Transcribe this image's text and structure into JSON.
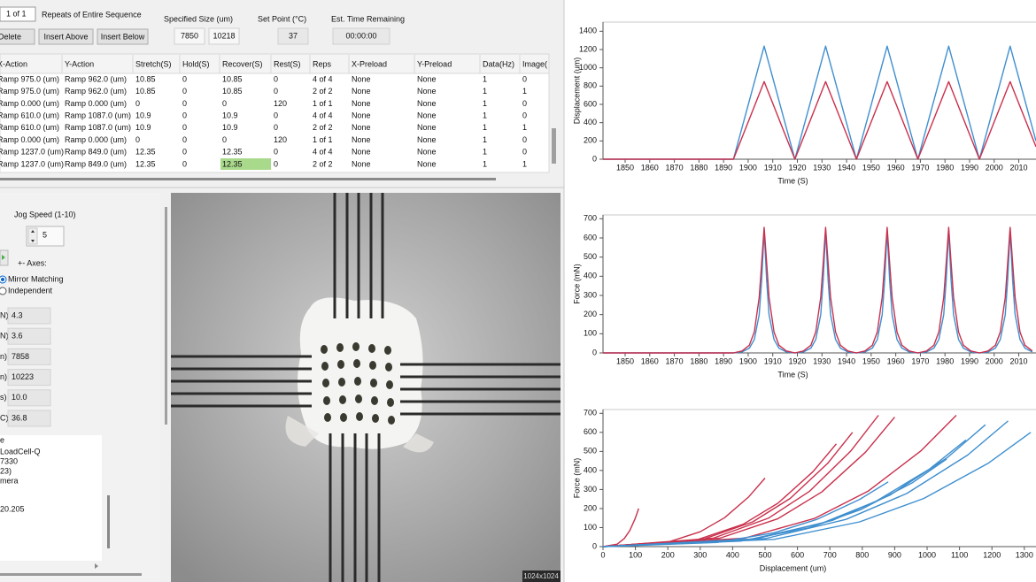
{
  "toolbar": {
    "page": "1 of 1",
    "repeats_label": "Repeats of Entire Sequence",
    "buttons": [
      "Delete",
      "Insert Above",
      "Insert Below"
    ],
    "specified_size_label": "Specified Size (um)",
    "size_x": "7850",
    "size_y": "10218",
    "set_point_label": "Set Point (°C)",
    "set_point": "37",
    "time_label": "Est. Time Remaining",
    "time": "00:00:00"
  },
  "table": {
    "headers": [
      "X-Action",
      "Y-Action",
      "Stretch(S)",
      "Hold(S)",
      "Recover(S)",
      "Rest(S)",
      "Reps",
      "X-Preload",
      "Y-Preload",
      "Data(Hz)",
      "Image("
    ],
    "rows": [
      [
        "Ramp 975.0 (um)",
        "Ramp 962.0 (um)",
        "10.85",
        "0",
        "10.85",
        "0",
        "4 of 4",
        "None",
        "None",
        "1",
        "0"
      ],
      [
        "Ramp 975.0 (um)",
        "Ramp 962.0 (um)",
        "10.85",
        "0",
        "10.85",
        "0",
        "2 of 2",
        "None",
        "None",
        "1",
        "1"
      ],
      [
        "Ramp 0.000 (um)",
        "Ramp 0.000 (um)",
        "0",
        "0",
        "0",
        "120",
        "1 of 1",
        "None",
        "None",
        "1",
        "0"
      ],
      [
        "Ramp 610.0 (um)",
        "Ramp 1087.0 (um)",
        "10.9",
        "0",
        "10.9",
        "0",
        "4 of 4",
        "None",
        "None",
        "1",
        "0"
      ],
      [
        "Ramp 610.0 (um)",
        "Ramp 1087.0 (um)",
        "10.9",
        "0",
        "10.9",
        "0",
        "2 of 2",
        "None",
        "None",
        "1",
        "1"
      ],
      [
        "Ramp 0.000 (um)",
        "Ramp 0.000 (um)",
        "0",
        "0",
        "0",
        "120",
        "1 of 1",
        "None",
        "None",
        "1",
        "0"
      ],
      [
        "Ramp 1237.0 (um)",
        "Ramp 849.0 (um)",
        "12.35",
        "0",
        "12.35",
        "0",
        "4 of 4",
        "None",
        "None",
        "1",
        "0"
      ],
      [
        "Ramp 1237.0 (um)",
        "Ramp 849.0 (um)",
        "12.35",
        "0",
        "12.35",
        "0",
        "2 of 2",
        "None",
        "None",
        "1",
        "1"
      ]
    ]
  },
  "controls": {
    "jog_label": "Jog Speed (1-10)",
    "jog": "5",
    "axes_label": "+- Axes:",
    "radios": [
      "Mirror Matching",
      "Independent"
    ],
    "readouts": [
      {
        "label": "N)",
        "value": "4.3"
      },
      {
        "label": "N)",
        "value": "3.6"
      },
      {
        "label": "n)",
        "value": "7858"
      },
      {
        "label": "n)",
        "value": "10223"
      },
      {
        "label": "s)",
        "value": "10.0"
      },
      {
        "label": "C)",
        "value": "36.8"
      }
    ],
    "info_lines": [
      "e",
      "LoadCell-Q",
      "7330",
      "23)",
      "mera",
      "20.205"
    ]
  },
  "image_label": "1024x1024",
  "chart_data": [
    {
      "type": "line",
      "xlabel": "Time (S)",
      "ylabel": "Displacement (um)",
      "xlim": [
        1841,
        2017
      ],
      "ylim": [
        0,
        1500
      ],
      "xticks": [
        1850,
        1860,
        1870,
        1880,
        1890,
        1900,
        1910,
        1920,
        1930,
        1940,
        1950,
        1960,
        1970,
        1980,
        1990,
        2000,
        2010
      ],
      "yticks": [
        0,
        200,
        400,
        600,
        800,
        1000,
        1200,
        1400
      ],
      "x": [
        1841,
        1894,
        1906.5,
        1919,
        1931.5,
        1944,
        1956.5,
        1969,
        1981.5,
        1994,
        2006.5,
        2017
      ],
      "series": [
        {
          "color": "#3f8fcf",
          "values": [
            0,
            0,
            1237,
            0,
            1237,
            0,
            1237,
            0,
            1237,
            0,
            1237,
            198
          ]
        },
        {
          "color": "#c9304c",
          "values": [
            0,
            0,
            849,
            0,
            849,
            0,
            849,
            0,
            849,
            0,
            849,
            136
          ]
        }
      ]
    },
    {
      "type": "line",
      "xlabel": "Time (S)",
      "ylabel": "Force (mN)",
      "xlim": [
        1841,
        2017
      ],
      "ylim": [
        0,
        720
      ],
      "xticks": [
        1850,
        1860,
        1870,
        1880,
        1890,
        1900,
        1910,
        1920,
        1930,
        1940,
        1950,
        1960,
        1970,
        1980,
        1990,
        2000,
        2010
      ],
      "yticks": [
        0,
        100,
        200,
        300,
        400,
        500,
        600,
        700
      ],
      "x": [
        1841,
        1894,
        1897.5,
        1900.5,
        1902.5,
        1904.5,
        1905.5,
        1906.5,
        1907.5,
        1908.5,
        1910.5,
        1912.5,
        1915.5,
        1919,
        1922.5,
        1925.5,
        1927.5,
        1929.5,
        1930.5,
        1931.5,
        1932.5,
        1933.5,
        1935.5,
        1937.5,
        1940.5,
        1944,
        1947.5,
        1950.5,
        1952.5,
        1954.5,
        1955.5,
        1956.5,
        1957.5,
        1958.5,
        1960.5,
        1962.5,
        1965.5,
        1969,
        1972.5,
        1975.5,
        1977.5,
        1979.5,
        1980.5,
        1981.5,
        1982.5,
        1983.5,
        1985.5,
        1987.5,
        1990.5,
        1994,
        1997.5,
        2000.5,
        2002.5,
        2004.5,
        2005.5,
        2006.5,
        2007.5,
        2008.5,
        2010.5,
        2012.5,
        2015.5
      ],
      "series": [
        {
          "color": "#3f8fcf",
          "values": [
            0,
            0,
            5,
            25,
            70,
            200,
            380,
            640,
            380,
            200,
            70,
            25,
            5,
            0,
            5,
            25,
            70,
            200,
            380,
            640,
            380,
            200,
            70,
            25,
            5,
            0,
            5,
            25,
            70,
            200,
            380,
            640,
            380,
            200,
            70,
            25,
            5,
            0,
            5,
            25,
            70,
            200,
            380,
            640,
            380,
            200,
            70,
            25,
            5,
            0,
            5,
            25,
            70,
            200,
            380,
            640,
            380,
            200,
            70,
            25,
            5
          ]
        },
        {
          "color": "#c9304c",
          "values": [
            0,
            0,
            10,
            40,
            110,
            290,
            470,
            655,
            470,
            290,
            110,
            40,
            10,
            0,
            10,
            40,
            110,
            290,
            470,
            655,
            470,
            290,
            110,
            40,
            10,
            0,
            10,
            40,
            110,
            290,
            470,
            655,
            470,
            290,
            110,
            40,
            10,
            0,
            10,
            40,
            110,
            290,
            470,
            655,
            470,
            290,
            110,
            40,
            10,
            0,
            10,
            40,
            110,
            290,
            470,
            655,
            470,
            290,
            110,
            40,
            10
          ]
        }
      ]
    },
    {
      "type": "line",
      "xlabel": "Displacement (um)",
      "ylabel": "Force (mN)",
      "xlim": [
        0,
        1336
      ],
      "ylim": [
        0,
        720
      ],
      "xticks": [
        0,
        100,
        200,
        300,
        400,
        500,
        600,
        700,
        800,
        900,
        1000,
        1100,
        1200,
        1300
      ],
      "yticks": [
        0,
        100,
        200,
        300,
        400,
        500,
        600,
        700
      ],
      "series": [
        {
          "color": "#c9304c",
          "x": [
            0,
            44,
            66,
            82.5,
            99,
            110
          ],
          "values": [
            0,
            13,
            43,
            84,
            146,
            200
          ]
        },
        {
          "color": "#c9304c",
          "x": [
            0,
            200,
            300,
            375,
            450,
            500
          ],
          "values": [
            0,
            23,
            78,
            152,
            262,
            360
          ]
        },
        {
          "color": "#c9304c",
          "x": [
            0,
            288,
            432,
            540,
            648,
            720
          ],
          "values": [
            0,
            35,
            117,
            228,
            394,
            540
          ]
        },
        {
          "color": "#c9304c",
          "x": [
            0,
            308,
            462,
            577.5,
            693,
            770
          ],
          "values": [
            0,
            38,
            130,
            253,
            437,
            600
          ]
        },
        {
          "color": "#c9304c",
          "x": [
            0,
            340,
            510,
            637.5,
            765,
            850
          ],
          "values": [
            0,
            44,
            149,
            291,
            503,
            690
          ]
        },
        {
          "color": "#c9304c",
          "x": [
            0,
            360,
            540,
            675,
            810,
            900
          ],
          "values": [
            0,
            44,
            147,
            287,
            496,
            680
          ]
        },
        {
          "color": "#c9304c",
          "x": [
            0,
            436,
            654,
            817.5,
            981,
            1090
          ],
          "values": [
            0,
            44,
            149,
            291,
            503,
            690
          ]
        },
        {
          "color": "#3f8fcf",
          "x": [
            0,
            352,
            528,
            660,
            792,
            880
          ],
          "values": [
            0,
            22,
            73,
            143,
            248,
            340
          ]
        },
        {
          "color": "#3f8fcf",
          "x": [
            0,
            424,
            636,
            795,
            954,
            1060
          ],
          "values": [
            0,
            29,
            99,
            194,
            335,
            460
          ]
        },
        {
          "color": "#3f8fcf",
          "x": [
            0,
            448,
            672,
            840,
            1008,
            1120
          ],
          "values": [
            0,
            36,
            121,
            236,
            408,
            560
          ]
        },
        {
          "color": "#3f8fcf",
          "x": [
            0,
            472,
            708,
            885,
            1062,
            1180
          ],
          "values": [
            0,
            41,
            138,
            270,
            467,
            640
          ]
        },
        {
          "color": "#3f8fcf",
          "x": [
            0,
            500,
            750,
            937.5,
            1125,
            1250
          ],
          "values": [
            0,
            42,
            143,
            279,
            481,
            660
          ]
        },
        {
          "color": "#3f8fcf",
          "x": [
            0,
            528,
            792,
            990,
            1188,
            1320
          ],
          "values": [
            0,
            38,
            130,
            253,
            437,
            600
          ]
        }
      ]
    }
  ]
}
